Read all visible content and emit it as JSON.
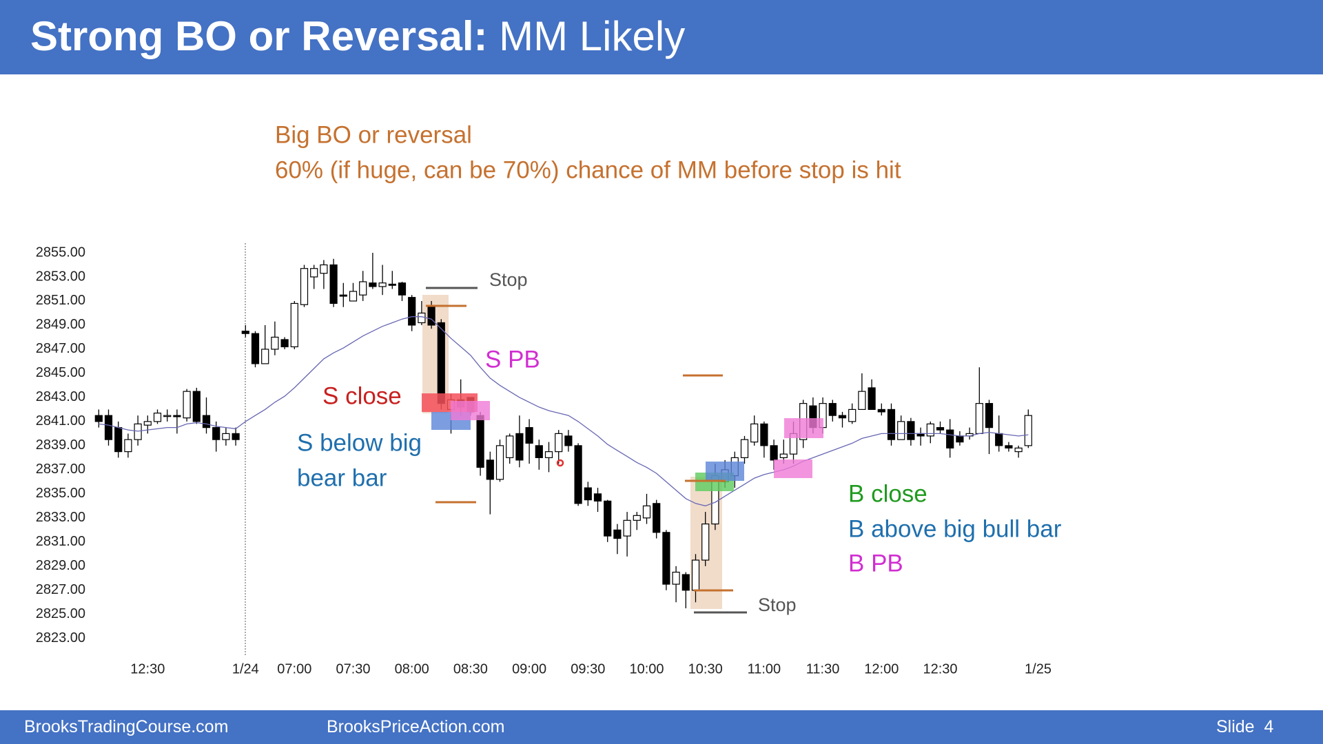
{
  "header": {
    "title_bold": "Strong BO or Reversal:",
    "title_rest": "MM Likely"
  },
  "chart_data": {
    "type": "candlestick",
    "subtitle_lines": [
      "Big BO or reversal",
      "60% (if huge, can be 70%) chance of MM before stop is hit"
    ],
    "categories": [
      null,
      null,
      null,
      null,
      null,
      "12:30",
      null,
      null,
      null,
      null,
      null,
      null,
      null,
      null,
      null,
      "1/24",
      null,
      null,
      null,
      null,
      "07:00",
      null,
      null,
      null,
      null,
      null,
      "07:30",
      null,
      null,
      null,
      null,
      null,
      "08:00",
      null,
      null,
      null,
      null,
      null,
      "08:30",
      null,
      null,
      null,
      null,
      null,
      "09:00",
      null,
      null,
      null,
      null,
      null,
      "09:30",
      null,
      null,
      null,
      null,
      null,
      "10:00",
      null,
      null,
      null,
      null,
      null,
      "10:30",
      null,
      null,
      null,
      null,
      null,
      "11:00",
      null,
      null,
      null,
      null,
      null,
      "11:30",
      null,
      null,
      null,
      null,
      null,
      "12:00",
      null,
      null,
      null,
      null,
      null,
      "12:30",
      null,
      null,
      null,
      null,
      null,
      null,
      null,
      null,
      null,
      "1/25"
    ],
    "open": [
      2841.5,
      2841.5,
      2840.5,
      2838.5,
      2839.5,
      2840.7,
      2841,
      2841.5,
      2841.5,
      2841.3,
      2843.5,
      2841.5,
      2840.5,
      2839.5,
      2840,
      2848.5,
      2848.3,
      2845.8,
      2847,
      2847.8,
      2847.2,
      2850.7,
      2853,
      2853.3,
      2854,
      2851.5,
      2851,
      2851.5,
      2852.5,
      2852.2,
      2852.4,
      2852.5,
      2851.3,
      2849.2,
      2850.5,
      2849.2,
      2842,
      2842.8,
      2843,
      2841.5,
      2837.8,
      2836.2,
      2838,
      2840,
      2840.5,
      2839,
      2838,
      2838.5,
      2839.8,
      2839,
      2835.5,
      2835,
      2834.4,
      2832,
      2831.5,
      2832.8,
      2833,
      2834.2,
      2831.8,
      2827.5,
      2828.3,
      2827,
      2829.5,
      2832.5,
      2836,
      2836.5,
      2838,
      2839.3,
      2840.8,
      2839,
      2838,
      2838.3,
      2839.5,
      2842.3,
      2840.5,
      2842.5,
      2841.5,
      2841,
      2842,
      2843.8,
      2842,
      2842,
      2839.5,
      2841,
      2840,
      2839.8,
      2840.5,
      2840.3,
      2839.8,
      2839.8,
      2840,
      2842.5,
      2840,
      2839,
      2838.5,
      2839,
      null
    ],
    "high": [
      2842,
      2842,
      2841,
      2840,
      2841.5,
      2841.5,
      2842,
      2842,
      2842,
      2843.7,
      2843.8,
      2843,
      2841,
      2840.5,
      2840.5,
      2849,
      2848.5,
      2849,
      2849.3,
      2848,
      2851,
      2854,
      2854,
      2854.4,
      2854.5,
      2852.5,
      2852.5,
      2853.5,
      2855,
      2854,
      2853.5,
      2852.6,
      2851.5,
      2851,
      2851,
      2849.5,
      2843.3,
      2844.5,
      2843,
      2841.8,
      2838.5,
      2839.5,
      2840,
      2841.5,
      2841.2,
      2839.5,
      2839.3,
      2840.3,
      2840.3,
      2839.2,
      2836,
      2835.5,
      2834.5,
      2832.5,
      2833.5,
      2833.5,
      2835,
      2834.5,
      2832,
      2829,
      2828.5,
      2830,
      2833.5,
      2837.5,
      2837.8,
      2838.5,
      2839.8,
      2841.5,
      2841,
      2839.5,
      2839.5,
      2841,
      2842.8,
      2843,
      2843,
      2842.8,
      2841.8,
      2842.5,
      2845,
      2844.5,
      2842.5,
      2842.5,
      2841.5,
      2841.3,
      2840.5,
      2841,
      2841,
      2841.2,
      2840.2,
      2840.5,
      2845.5,
      2842.8,
      2841.5,
      2839.3,
      2839,
      2842,
      null
    ],
    "low": [
      2840.5,
      2839,
      2838,
      2838,
      2839,
      2840,
      2840.8,
      2841,
      2840,
      2841,
      2840.8,
      2840,
      2838.5,
      2839,
      2839,
      2848,
      2845.5,
      2845.8,
      2846.5,
      2847,
      2847,
      2850.5,
      2852,
      2852,
      2850.5,
      2850.5,
      2851,
      2851,
      2852,
      2851.5,
      2852,
      2851,
      2848.5,
      2849,
      2848.7,
      2842,
      2840,
      2841.5,
      2841.5,
      2836.5,
      2833.3,
      2836,
      2837.5,
      2837.2,
      2837.5,
      2837,
      2836.8,
      2837.5,
      2838.5,
      2834,
      2834,
      2833.5,
      2831,
      2830,
      2829.8,
      2832,
      2832.5,
      2831.3,
      2827,
      2826,
      2825.5,
      2826,
      2829,
      2832,
      2835.5,
      2835.5,
      2837.5,
      2839,
      2838,
      2837,
      2837.5,
      2837.5,
      2838.8,
      2840,
      2840,
      2841,
      2840.5,
      2840.8,
      2842,
      2842,
      2841.5,
      2839,
      2839.5,
      2839,
      2839,
      2839.2,
      2840,
      2838,
      2839,
      2839.5,
      2840,
      2838.3,
      2838.5,
      2838.5,
      2838,
      2838.8,
      null
    ],
    "close": [
      2841,
      2839.5,
      2838.5,
      2839.5,
      2840.8,
      2841,
      2841.7,
      2841.5,
      2841.4,
      2843.5,
      2841,
      2840.5,
      2839.5,
      2840,
      2839.5,
      2848.3,
      2845.8,
      2847,
      2848,
      2847.2,
      2850.8,
      2853.7,
      2853.7,
      2854,
      2850.8,
      2851.4,
      2851.8,
      2852.6,
      2852.2,
      2852.5,
      2852.3,
      2851.5,
      2849,
      2850,
      2849,
      2842.5,
      2842.8,
      2842.2,
      2841.8,
      2837.2,
      2836.2,
      2839,
      2839.8,
      2837.8,
      2839.2,
      2838,
      2838.5,
      2840,
      2839,
      2834.2,
      2834.5,
      2834.4,
      2831.5,
      2831.3,
      2832.8,
      2833.2,
      2834,
      2831.8,
      2827.5,
      2828.5,
      2827,
      2829.5,
      2832.5,
      2836.5,
      2837,
      2838,
      2839.5,
      2840.8,
      2839,
      2837.8,
      2838.3,
      2840,
      2842.5,
      2840.5,
      2842.5,
      2841.5,
      2841.3,
      2842,
      2843.5,
      2842,
      2841.8,
      2839.5,
      2841,
      2839.5,
      2839.8,
      2840.8,
      2840.3,
      2838.8,
      2839.3,
      2840,
      2842.5,
      2840.5,
      2839,
      2838.8,
      2838.8,
      2841.5,
      null
    ],
    "up_color": "#ffffff",
    "down_color": "#000000",
    "ma": {
      "color": "#6666b3",
      "values": [
        2840.8,
        2840.7,
        2840.5,
        2840.3,
        2840.2,
        2840.3,
        2840.4,
        2840.5,
        2840.5,
        2840.8,
        2840.9,
        2840.8,
        2840.6,
        2840.5,
        2840.4,
        2841,
        2841.5,
        2842,
        2842.6,
        2843.1,
        2843.8,
        2844.6,
        2845.4,
        2846.2,
        2846.7,
        2847.1,
        2847.6,
        2848.1,
        2848.5,
        2848.9,
        2849.2,
        2849.5,
        2849.7,
        2849.7,
        2849.5,
        2848.7,
        2847.9,
        2847.2,
        2846.5,
        2845.5,
        2844.6,
        2844,
        2843.5,
        2843,
        2842.6,
        2842.2,
        2841.9,
        2841.7,
        2841.5,
        2841,
        2840.4,
        2839.8,
        2839.1,
        2838.6,
        2838.1,
        2837.6,
        2837.2,
        2836.7,
        2836,
        2835.3,
        2834.6,
        2834.2,
        2834,
        2834.3,
        2834.8,
        2835.3,
        2835.8,
        2836.3,
        2836.6,
        2836.8,
        2837,
        2837.3,
        2837.7,
        2838,
        2838.3,
        2838.6,
        2838.9,
        2839.2,
        2839.6,
        2839.8,
        2840,
        2840,
        2840,
        2840,
        2840,
        2840,
        2840,
        2839.9,
        2839.8,
        2839.8,
        2840,
        2840.1,
        2840,
        2839.9,
        2839.8,
        2839.9,
        null
      ]
    },
    "ylim": [
      2821.5,
      2855.8
    ],
    "yticks": [
      {
        "value": 2823,
        "label": "2823.00"
      },
      {
        "value": 2825,
        "label": "2825.00"
      },
      {
        "value": 2827,
        "label": "2827.00"
      },
      {
        "value": 2829,
        "label": "2829.00"
      },
      {
        "value": 2831,
        "label": "2831.00"
      },
      {
        "value": 2833,
        "label": "2833.00"
      },
      {
        "value": 2835,
        "label": "2835.00"
      },
      {
        "value": 2837,
        "label": "2837.00"
      },
      {
        "value": 2839,
        "label": "2839.00"
      },
      {
        "value": 2841,
        "label": "2841.00"
      },
      {
        "value": 2843,
        "label": "2843.00"
      },
      {
        "value": 2845,
        "label": "2845.00"
      },
      {
        "value": 2847,
        "label": "2847.00"
      },
      {
        "value": 2849,
        "label": "2849.00"
      },
      {
        "value": 2851,
        "label": "2851.00"
      },
      {
        "value": 2853,
        "label": "2853.00"
      },
      {
        "value": 2855,
        "label": "2855.00"
      }
    ],
    "annotations": {
      "stop_top": "Stop",
      "s_pb": "S PB",
      "s_close": "S close",
      "s_below": [
        "S below big",
        "bear bar"
      ],
      "b_close": "B close",
      "b_above": "B above big bull bar",
      "b_pb": "B PB",
      "stop_bottom": "Stop"
    }
  },
  "footer": {
    "left": "BrooksTradingCourse.com",
    "middle": "BrooksPriceAction.com",
    "right": "Slide  4"
  }
}
